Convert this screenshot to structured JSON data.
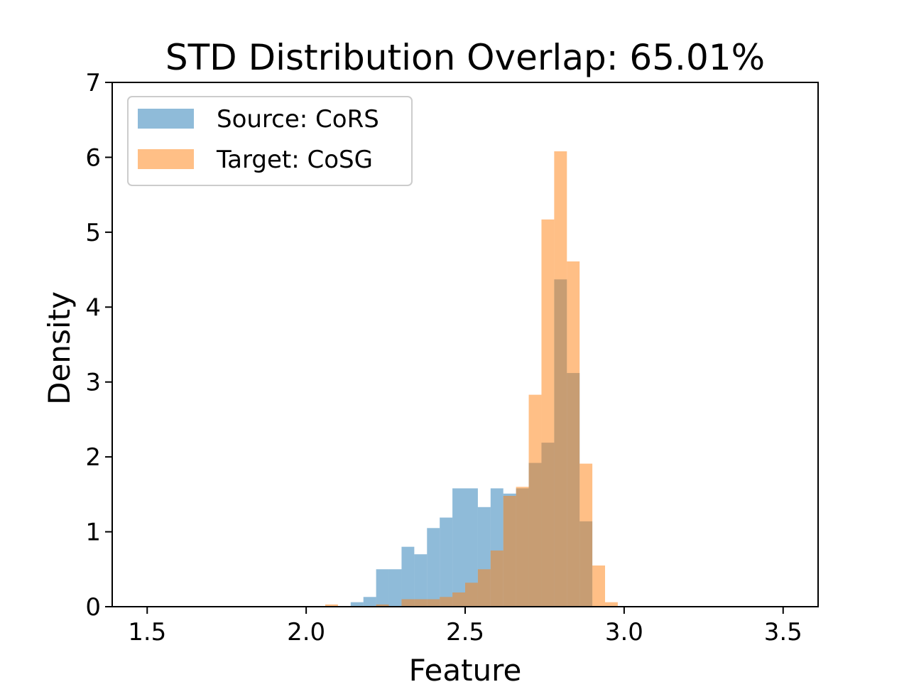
{
  "chart_data": {
    "type": "bar",
    "title": "STD Distribution Overlap: 65.01%",
    "xlabel": "Feature",
    "ylabel": "Density",
    "xlim": [
      1.39,
      3.61
    ],
    "ylim": [
      0,
      7
    ],
    "xticks": [
      "1.5",
      "2.0",
      "2.5",
      "3.0",
      "3.5"
    ],
    "yticks": [
      "0",
      "1",
      "2",
      "3",
      "4",
      "5",
      "6",
      "7"
    ],
    "grid": false,
    "legend_position": "top-left",
    "bin_width": 0.04,
    "series": [
      {
        "name": "Source: CoRS",
        "color": "#1f77b4",
        "opacity": 0.5,
        "bins": [
          {
            "x0": 2.14,
            "value": 0.06
          },
          {
            "x0": 2.18,
            "value": 0.13
          },
          {
            "x0": 2.22,
            "value": 0.5
          },
          {
            "x0": 2.26,
            "value": 0.5
          },
          {
            "x0": 2.3,
            "value": 0.8
          },
          {
            "x0": 2.34,
            "value": 0.7
          },
          {
            "x0": 2.38,
            "value": 1.05
          },
          {
            "x0": 2.42,
            "value": 1.19
          },
          {
            "x0": 2.46,
            "value": 1.58
          },
          {
            "x0": 2.5,
            "value": 1.58
          },
          {
            "x0": 2.54,
            "value": 1.33
          },
          {
            "x0": 2.58,
            "value": 1.58
          },
          {
            "x0": 2.62,
            "value": 1.51
          },
          {
            "x0": 2.66,
            "value": 1.58
          },
          {
            "x0": 2.7,
            "value": 1.92
          },
          {
            "x0": 2.74,
            "value": 2.19
          },
          {
            "x0": 2.78,
            "value": 4.37
          },
          {
            "x0": 2.82,
            "value": 3.12
          },
          {
            "x0": 2.86,
            "value": 1.14
          }
        ]
      },
      {
        "name": "Target: CoSG",
        "color": "#ff7f0e",
        "opacity": 0.5,
        "bins": [
          {
            "x0": 2.06,
            "value": 0.03
          },
          {
            "x0": 2.22,
            "value": 0.03
          },
          {
            "x0": 2.3,
            "value": 0.1
          },
          {
            "x0": 2.34,
            "value": 0.1
          },
          {
            "x0": 2.38,
            "value": 0.1
          },
          {
            "x0": 2.42,
            "value": 0.13
          },
          {
            "x0": 2.46,
            "value": 0.19
          },
          {
            "x0": 2.5,
            "value": 0.32
          },
          {
            "x0": 2.54,
            "value": 0.5
          },
          {
            "x0": 2.58,
            "value": 0.75
          },
          {
            "x0": 2.62,
            "value": 1.48
          },
          {
            "x0": 2.66,
            "value": 1.6
          },
          {
            "x0": 2.7,
            "value": 2.83
          },
          {
            "x0": 2.74,
            "value": 5.17
          },
          {
            "x0": 2.78,
            "value": 6.08
          },
          {
            "x0": 2.82,
            "value": 4.61
          },
          {
            "x0": 2.86,
            "value": 1.91
          },
          {
            "x0": 2.9,
            "value": 0.55
          },
          {
            "x0": 2.94,
            "value": 0.06
          }
        ]
      }
    ]
  }
}
